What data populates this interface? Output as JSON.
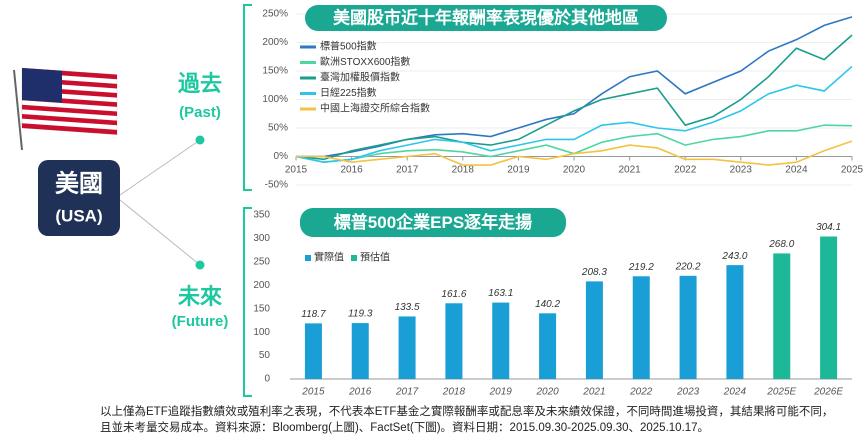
{
  "profile": {
    "country": "美國",
    "country_en": "(USA)"
  },
  "periods": [
    {
      "label": "過去",
      "label_en": "(Past)"
    },
    {
      "label": "未來",
      "label_en": "(Future)"
    }
  ],
  "chart_data": [
    {
      "type": "line",
      "title": "美國股市近十年報酬率表現優於其他地區",
      "x": [
        2015,
        2015.5,
        2016,
        2016.5,
        2017,
        2017.5,
        2018,
        2018.5,
        2019,
        2019.5,
        2020,
        2020.5,
        2021,
        2021.5,
        2022,
        2022.5,
        2023,
        2023.5,
        2024,
        2024.5,
        2025
      ],
      "xlim": [
        2015,
        2025
      ],
      "xticks": [
        2015,
        2016,
        2017,
        2018,
        2019,
        2020,
        2021,
        2022,
        2023,
        2024,
        2025
      ],
      "ylim": [
        -50,
        250
      ],
      "yticks": [
        {
          "value": -50,
          "label": "-50%"
        },
        {
          "value": 0,
          "label": "0%"
        },
        {
          "value": 50,
          "label": "50%"
        },
        {
          "value": 100,
          "label": "100%"
        },
        {
          "value": 150,
          "label": "150%"
        },
        {
          "value": 200,
          "label": "200%"
        },
        {
          "value": 250,
          "label": "250%"
        }
      ],
      "series": [
        {
          "name": "標普500指數",
          "color": "#2e78c0",
          "values": [
            0,
            0,
            8,
            18,
            30,
            38,
            40,
            35,
            50,
            65,
            75,
            110,
            140,
            150,
            110,
            130,
            150,
            185,
            205,
            230,
            245
          ]
        },
        {
          "name": "歐洲STOXX600指數",
          "color": "#4fd6a0",
          "values": [
            0,
            -10,
            -5,
            5,
            10,
            12,
            8,
            0,
            10,
            20,
            5,
            25,
            35,
            40,
            20,
            30,
            35,
            45,
            45,
            55,
            54
          ]
        },
        {
          "name": "臺灣加權股價指數",
          "color": "#1a9e8c",
          "values": [
            0,
            -5,
            10,
            20,
            30,
            35,
            25,
            20,
            30,
            55,
            80,
            100,
            110,
            120,
            55,
            70,
            100,
            140,
            190,
            170,
            213
          ]
        },
        {
          "name": "日經225指數",
          "color": "#2cc6ec",
          "values": [
            0,
            -10,
            -5,
            10,
            20,
            30,
            25,
            10,
            20,
            30,
            30,
            55,
            60,
            50,
            45,
            60,
            80,
            110,
            125,
            115,
            158
          ]
        },
        {
          "name": "中國上海證交所綜合指數",
          "color": "#f4c243",
          "values": [
            0,
            0,
            -10,
            -5,
            0,
            5,
            -15,
            -15,
            0,
            -5,
            5,
            10,
            20,
            15,
            -5,
            -5,
            -10,
            -15,
            -10,
            10,
            27
          ]
        }
      ]
    },
    {
      "type": "bar",
      "title": "標普500企業EPS逐年走揚",
      "categories": [
        "2015",
        "2016",
        "2017",
        "2018",
        "2019",
        "2020",
        "2021",
        "2022",
        "2023",
        "2024",
        "2025E",
        "2026E"
      ],
      "ylim": [
        0,
        350
      ],
      "yticks": [
        0,
        50,
        100,
        150,
        200,
        250,
        300,
        350
      ],
      "series": [
        {
          "name": "實際值",
          "color": "#1a9ed6",
          "values": [
            118.7,
            119.3,
            133.5,
            161.6,
            163.1,
            140.2,
            208.3,
            219.2,
            220.2,
            243.0,
            null,
            null
          ],
          "value_labels": [
            "118.7",
            "119.3",
            "133.5",
            "161.6",
            "163.1",
            "140.2",
            "208.3",
            "219.2",
            "220.2",
            "243.0",
            null,
            null
          ]
        },
        {
          "name": "預估值",
          "color": "#1db897",
          "values": [
            null,
            null,
            null,
            null,
            null,
            null,
            null,
            null,
            null,
            null,
            268.0,
            304.1
          ],
          "value_labels": [
            null,
            null,
            null,
            null,
            null,
            null,
            null,
            null,
            null,
            null,
            "268.0",
            "304.1"
          ]
        }
      ]
    }
  ],
  "footnote": [
    "以上僅為ETF追蹤指數績效或殖利率之表現，不代表本ETF基金之實際報酬率或配息率及未來績效保證，不同時間進場投資，其結果將可能不同，",
    "且並未考量交易成本。資料來源：Bloomberg(上圖)、FactSet(下圖)。資料日期：2015.09.30-2025.09.30、2025.10.17。"
  ]
}
